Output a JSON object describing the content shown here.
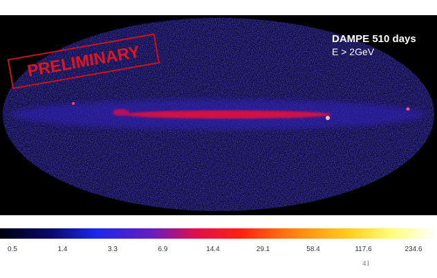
{
  "map": {
    "caption_line1": "DAMPE 510 days",
    "caption_line2": "E > 2GeV",
    "stamp": "PRELIMINARY"
  },
  "colorbar": {
    "ticks": [
      0.5,
      1.4,
      3.3,
      6.9,
      14.4,
      29.1,
      58.4,
      117.6,
      234.6
    ]
  },
  "footer": {
    "page_number": "41"
  }
}
